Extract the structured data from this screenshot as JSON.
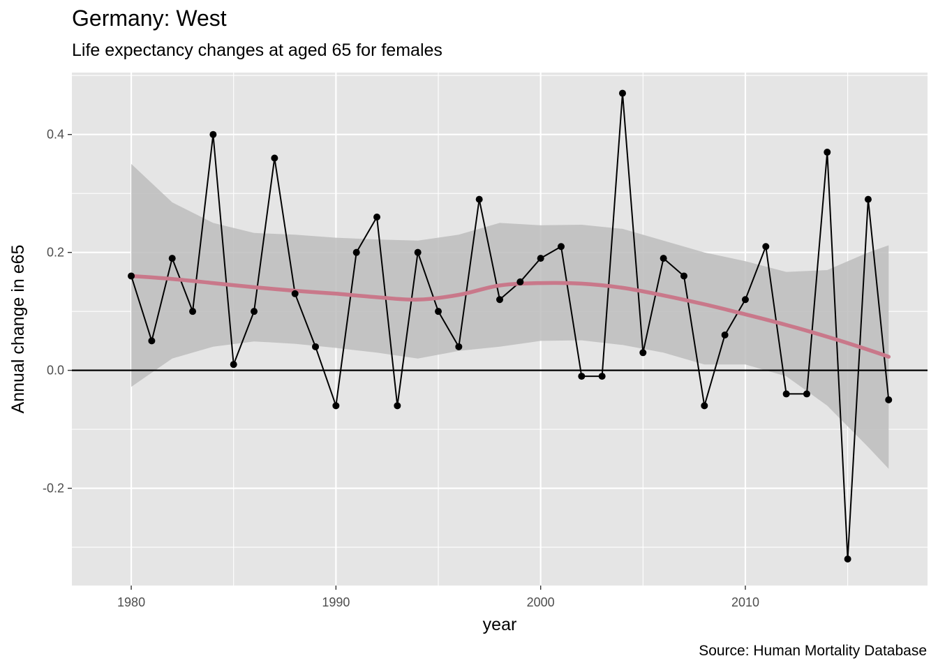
{
  "title": "Germany: West",
  "subtitle": "Life expectancy changes at aged 65 for females",
  "caption": "Source: Human Mortality Database",
  "colors": {
    "panel": "#e5e5e5",
    "grid": "#ffffff",
    "series_line": "#000000",
    "points": "#000000",
    "smooth_line": "#c9788a",
    "ribbon": "#bdbdbd",
    "zero_line": "#000000"
  },
  "chart_data": {
    "type": "line",
    "title": "Germany: West",
    "subtitle": "Life expectancy changes at aged 65 for females",
    "xlabel": "year",
    "ylabel": "Annual change in e65",
    "xlim": [
      1977.1,
      2018.9
    ],
    "ylim": [
      -0.365,
      0.505
    ],
    "x_ticks": [
      1980,
      1990,
      2000,
      2010
    ],
    "y_ticks": [
      -0.2,
      0.0,
      0.2,
      0.4
    ],
    "y_tick_labels": [
      "-0.2",
      "0.0",
      "0.2",
      "0.4"
    ],
    "grid": true,
    "reference_line_y": 0,
    "series": [
      {
        "x": [
          1980,
          1981,
          1982,
          1983,
          1984,
          1985,
          1986,
          1987,
          1988,
          1989,
          1990,
          1991,
          1992,
          1993,
          1994,
          1995,
          1996,
          1997,
          1998,
          1999,
          2000,
          2001,
          2002,
          2003,
          2004,
          2005,
          2006,
          2007,
          2008,
          2009,
          2010,
          2011,
          2012,
          2013,
          2014,
          2015,
          2016,
          2017
        ],
        "values": [
          0.16,
          0.05,
          0.19,
          0.1,
          0.4,
          0.01,
          0.1,
          0.36,
          0.13,
          0.04,
          -0.06,
          0.2,
          0.26,
          -0.06,
          0.2,
          0.1,
          0.04,
          0.29,
          0.12,
          0.15,
          0.19,
          0.21,
          -0.01,
          -0.01,
          0.47,
          0.03,
          0.19,
          0.16,
          -0.06,
          0.06,
          0.12,
          0.21,
          -0.04,
          -0.04,
          0.37,
          -0.32,
          0.29,
          -0.05
        ]
      }
    ],
    "smooth": {
      "x": [
        1980,
        1982,
        1984,
        1986,
        1988,
        1990,
        1992,
        1994,
        1996,
        1998,
        2000,
        2002,
        2004,
        2006,
        2008,
        2010,
        2012,
        2014,
        2016,
        2017
      ],
      "fit": [
        0.16,
        0.155,
        0.148,
        0.141,
        0.135,
        0.13,
        0.124,
        0.12,
        0.128,
        0.144,
        0.148,
        0.147,
        0.14,
        0.127,
        0.112,
        0.095,
        0.077,
        0.057,
        0.035,
        0.023
      ],
      "lower": [
        -0.028,
        0.02,
        0.04,
        0.049,
        0.045,
        0.038,
        0.03,
        0.02,
        0.033,
        0.04,
        0.05,
        0.051,
        0.043,
        0.03,
        0.01,
        0.01,
        -0.01,
        -0.06,
        -0.13,
        -0.167
      ],
      "upper": [
        0.35,
        0.285,
        0.25,
        0.233,
        0.23,
        0.225,
        0.222,
        0.22,
        0.23,
        0.25,
        0.246,
        0.247,
        0.24,
        0.22,
        0.2,
        0.185,
        0.167,
        0.17,
        0.2,
        0.212
      ]
    }
  }
}
